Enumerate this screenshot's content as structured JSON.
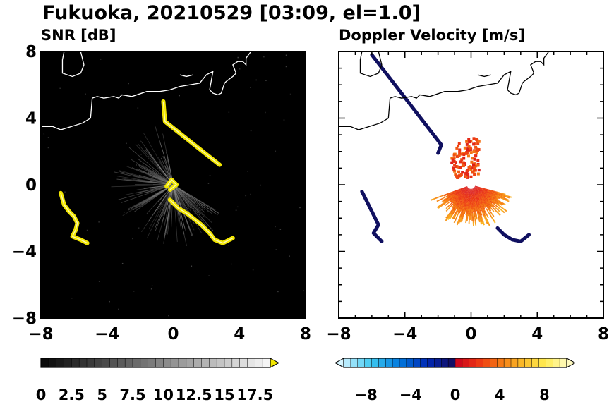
{
  "title": "Fukuoka, 20210529 [03:09, el=1.0]",
  "chart_data": [
    {
      "type": "heatmap",
      "title": "SNR [dB]",
      "xlim": [
        -8,
        8
      ],
      "ylim": [
        -8,
        8
      ],
      "xticks": [
        -8,
        -4,
        0,
        4,
        8
      ],
      "yticks": [
        -8,
        -4,
        0,
        4,
        8
      ],
      "xtick_labels": [
        "−8",
        "−4",
        "0",
        "4",
        "8"
      ],
      "ytick_labels": [
        "−8",
        "−4",
        "0",
        "4",
        "8"
      ],
      "background_color": "#000000",
      "colorbar": {
        "min": 0,
        "max": 18.75,
        "step": 0.625,
        "tick_values": [
          0,
          2.5,
          5,
          7.5,
          10,
          12.5,
          15,
          17.5
        ],
        "tick_labels": [
          "0",
          "2.5",
          "5",
          "7.5",
          "10",
          "12.5",
          "15",
          "17.5"
        ],
        "low_color": "#000000",
        "high_color": "#f5f5f5",
        "extend_color": "#f2e600"
      },
      "echoes": [
        {
          "name": "strong-band-west",
          "color": "#f2e600",
          "points": [
            [
              -6.8,
              -0.5
            ],
            [
              -6.6,
              -1.2
            ],
            [
              -6.3,
              -1.6
            ],
            [
              -6.0,
              -1.9
            ],
            [
              -5.8,
              -2.3
            ],
            [
              -5.9,
              -2.7
            ],
            [
              -6.1,
              -3.1
            ],
            [
              -5.6,
              -3.3
            ],
            [
              -5.2,
              -3.5
            ]
          ]
        },
        {
          "name": "strong-band-south",
          "color": "#f2e600",
          "points": [
            [
              -0.2,
              -0.9
            ],
            [
              0.3,
              -1.4
            ],
            [
              0.8,
              -1.7
            ],
            [
              1.2,
              -2.0
            ],
            [
              1.7,
              -2.4
            ],
            [
              2.2,
              -2.9
            ],
            [
              2.5,
              -3.3
            ],
            [
              3.0,
              -3.5
            ],
            [
              3.6,
              -3.2
            ]
          ]
        },
        {
          "name": "near-radar",
          "color": "#f2e600",
          "points": [
            [
              -0.4,
              -0.1
            ],
            [
              -0.1,
              0.3
            ],
            [
              0.2,
              0.0
            ],
            [
              -0.2,
              -0.3
            ]
          ]
        },
        {
          "name": "clutter-north",
          "color": "#f2e600",
          "points": [
            [
              -0.6,
              5.0
            ],
            [
              -0.5,
              3.8
            ],
            [
              2.8,
              1.2
            ]
          ]
        }
      ]
    },
    {
      "type": "heatmap",
      "title": "Doppler Velocity [m/s]",
      "xlim": [
        -8,
        8
      ],
      "ylim": [
        -8,
        8
      ],
      "xticks": [
        -8,
        -4,
        0,
        4,
        8
      ],
      "yticks": [
        -8,
        -4,
        0,
        4,
        8
      ],
      "xtick_labels": [
        "−8",
        "−4",
        "0",
        "4",
        "8"
      ],
      "ytick_labels": [
        "−8",
        "−4",
        "0",
        "4",
        "8"
      ],
      "background_color": "#ffffff",
      "colorbar": {
        "min": -10,
        "max": 10,
        "step": 0.625,
        "tick_values": [
          -8,
          -4,
          0,
          4,
          8
        ],
        "tick_labels": [
          "−8",
          "−4",
          "0",
          "4",
          "8"
        ],
        "low_extend_color": "#d6f5ff",
        "high_extend_color": "#fffac0"
      },
      "velocity_field": {
        "center": [
          0,
          0
        ],
        "radius_km": 2.7,
        "az_start_deg": 200,
        "az_end_deg": 345,
        "v_near": 0.5,
        "v_far": 6.0
      },
      "echoes": [
        {
          "name": "southwest-band",
          "color": "#101060",
          "points": [
            [
              -6.6,
              -0.4
            ],
            [
              -6.2,
              -1.2
            ],
            [
              -5.9,
              -1.8
            ],
            [
              -5.6,
              -2.4
            ],
            [
              -5.9,
              -2.9
            ],
            [
              -5.4,
              -3.4
            ]
          ]
        },
        {
          "name": "southeast-band",
          "color": "#101060",
          "points": [
            [
              1.6,
              -2.6
            ],
            [
              2.0,
              -3.0
            ],
            [
              2.5,
              -3.3
            ],
            [
              3.0,
              -3.4
            ],
            [
              3.5,
              -3.0
            ]
          ]
        },
        {
          "name": "north-edge",
          "color": "#101060",
          "points": [
            [
              -2.0,
              1.9
            ],
            [
              -1.8,
              2.4
            ],
            [
              -6.0,
              7.8
            ]
          ]
        }
      ]
    }
  ],
  "coastline": [
    [
      [
        -8,
        3.5
      ],
      [
        -7.3,
        3.5
      ],
      [
        -6.8,
        3.3
      ],
      [
        -5.5,
        3.7
      ],
      [
        -5.0,
        4.0
      ],
      [
        -4.9,
        5.2
      ],
      [
        -4.6,
        5.3
      ],
      [
        -4.2,
        5.2
      ],
      [
        -3.6,
        5.3
      ],
      [
        -3.3,
        5.2
      ],
      [
        -3.1,
        5.4
      ],
      [
        -2.5,
        5.3
      ],
      [
        -1.6,
        5.6
      ],
      [
        -0.8,
        5.6
      ],
      [
        -0.2,
        5.7
      ],
      [
        0.4,
        5.9
      ],
      [
        1.0,
        6.0
      ],
      [
        1.6,
        6.1
      ],
      [
        2.0,
        6.6
      ],
      [
        2.4,
        6.8
      ],
      [
        2.2,
        5.7
      ],
      [
        2.4,
        5.5
      ],
      [
        2.7,
        5.4
      ],
      [
        2.9,
        5.5
      ],
      [
        3.1,
        6.1
      ],
      [
        3.2,
        6.2
      ],
      [
        3.6,
        6.5
      ],
      [
        3.8,
        6.7
      ],
      [
        3.6,
        7.2
      ],
      [
        3.9,
        7.4
      ],
      [
        4.2,
        7.4
      ],
      [
        4.4,
        7.2
      ],
      [
        4.4,
        7.6
      ],
      [
        4.7,
        8.0
      ],
      [
        4.9,
        8.0
      ]
    ],
    [
      [
        -6.6,
        8.0
      ],
      [
        -6.7,
        7.5
      ],
      [
        -6.7,
        6.7
      ],
      [
        -6.1,
        6.5
      ],
      [
        -5.6,
        6.7
      ],
      [
        -5.4,
        7.2
      ],
      [
        -5.5,
        7.6
      ],
      [
        -5.6,
        8.0
      ]
    ],
    [
      [
        0.4,
        6.6
      ],
      [
        0.8,
        6.5
      ],
      [
        1.2,
        6.6
      ]
    ]
  ],
  "colors": {
    "coast_snr": "#ffffff",
    "coast_vel": "#000000",
    "axes": "#000000"
  }
}
